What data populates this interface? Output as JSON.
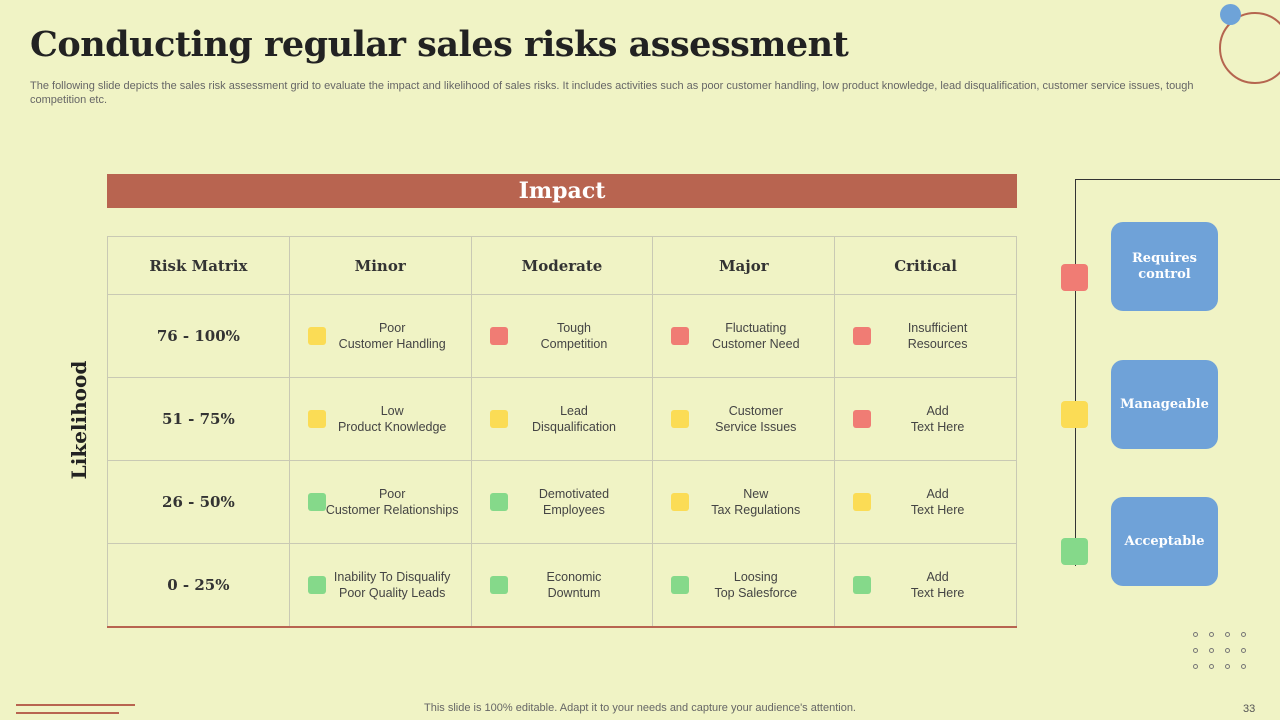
{
  "title": "Conducting regular sales risks assessment",
  "subtitle": "The following slide depicts the sales risk assessment grid to evaluate the impact and likelihood of sales risks. It includes activities such as poor customer handling, low product knowledge, lead disqualification, customer service issues, tough competition etc.",
  "impact_label": "Impact",
  "likelihood_label": "Likelihood",
  "colors": {
    "red": "#f07c74",
    "yellow": "#fbdc55",
    "green": "#85d98a",
    "accent": "#b86450",
    "blue": "#6fa2d8"
  },
  "matrix": {
    "headers": [
      "Risk Matrix",
      "Minor",
      "Moderate",
      "Major",
      "Critical"
    ],
    "rows": [
      {
        "label": "76 - 100%",
        "cells": [
          {
            "text": "Poor\nCustomer Handling",
            "level": "yellow"
          },
          {
            "text": "Tough\nCompetition",
            "level": "red"
          },
          {
            "text": "Fluctuating\nCustomer Need",
            "level": "red"
          },
          {
            "text": "Insufficient\nResources",
            "level": "red"
          }
        ]
      },
      {
        "label": "51 - 75%",
        "cells": [
          {
            "text": "Low\nProduct Knowledge",
            "level": "yellow"
          },
          {
            "text": "Lead\nDisqualification",
            "level": "yellow"
          },
          {
            "text": "Customer\nService Issues",
            "level": "yellow"
          },
          {
            "text": "Add\nText Here",
            "level": "red"
          }
        ]
      },
      {
        "label": "26 - 50%",
        "cells": [
          {
            "text": "Poor\nCustomer Relationships",
            "level": "green"
          },
          {
            "text": "Demotivated\nEmployees",
            "level": "green"
          },
          {
            "text": "New\nTax Regulations",
            "level": "yellow"
          },
          {
            "text": "Add\nText Here",
            "level": "yellow"
          }
        ]
      },
      {
        "label": "0 - 25%",
        "cells": [
          {
            "text": "Inability To Disqualify\nPoor Quality Leads",
            "level": "green"
          },
          {
            "text": "Economic\nDowntum",
            "level": "green"
          },
          {
            "text": "Loosing\nTop Salesforce",
            "level": "green"
          },
          {
            "text": "Add\nText Here",
            "level": "green"
          }
        ]
      }
    ]
  },
  "legend": [
    {
      "label": "Requires control",
      "level": "red"
    },
    {
      "label": "Manageable",
      "level": "yellow"
    },
    {
      "label": "Acceptable",
      "level": "green"
    }
  ],
  "footer": "This slide is 100% editable. Adapt it to your needs and capture your audience's attention.",
  "page_number": "33"
}
